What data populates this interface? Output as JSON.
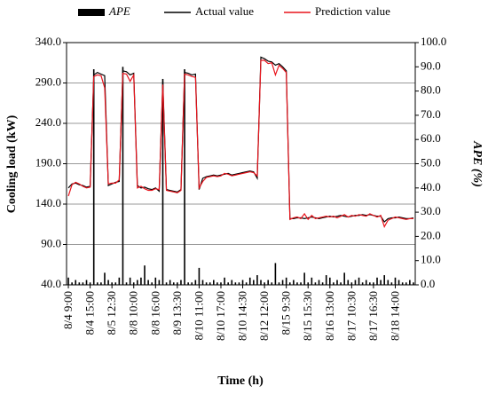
{
  "chart_data": {
    "type": "bar_line",
    "xlabel": "Time (h)",
    "ylabel": "Cooling load (kW)",
    "y2label": "APE (%)",
    "legend": "top",
    "grid": true,
    "categories": [
      "8/4 9:00",
      null,
      null,
      null,
      null,
      null,
      "8/4 15:00",
      null,
      null,
      null,
      null,
      null,
      "8/5 12:30",
      null,
      null,
      null,
      null,
      null,
      "8/8 10:00",
      null,
      null,
      null,
      null,
      null,
      "8/8 16:00",
      null,
      null,
      null,
      null,
      null,
      "8/9 13:30",
      null,
      null,
      null,
      null,
      null,
      "8/10 11:00",
      null,
      null,
      null,
      null,
      null,
      "8/10 17:00",
      null,
      null,
      null,
      null,
      null,
      "8/10 14:30",
      null,
      null,
      null,
      null,
      null,
      "8/12 12:00",
      null,
      null,
      null,
      null,
      null,
      "8/15 9:30",
      null,
      null,
      null,
      null,
      null,
      "8/15 15:30",
      null,
      null,
      null,
      null,
      null,
      "8/16 13:00",
      null,
      null,
      null,
      null,
      null,
      "8/17 10:30",
      null,
      null,
      null,
      null,
      null,
      "8/17 16:30",
      null,
      null,
      null,
      null,
      null,
      "8/18 14:00",
      null,
      null,
      null,
      null,
      null
    ],
    "series": [
      {
        "name": "APE",
        "color": "#000000",
        "axis": "y2",
        "kind": "bar",
        "values": [
          3,
          1,
          2,
          1,
          1,
          2,
          1,
          89,
          1,
          1,
          5,
          2,
          1,
          1,
          3,
          90,
          1,
          3,
          1,
          2,
          3,
          8,
          2,
          1,
          3,
          2,
          85,
          1,
          2,
          1,
          1,
          2,
          89,
          1,
          1,
          2,
          7,
          2,
          1,
          1,
          2,
          1,
          1,
          3,
          1,
          2,
          1,
          1,
          2,
          1,
          3,
          2,
          4,
          2,
          1,
          2,
          1,
          9,
          1,
          2,
          3,
          1,
          2,
          1,
          1,
          5,
          1,
          3,
          1,
          2,
          1,
          4,
          3,
          1,
          2,
          1,
          5,
          2,
          1,
          2,
          3,
          1,
          2,
          1,
          1,
          3,
          2,
          4,
          2,
          1,
          3,
          2,
          1,
          1,
          2,
          1
        ]
      },
      {
        "name": "Actual value",
        "color": "#000000",
        "kind": "line",
        "values": [
          160,
          165,
          166,
          164,
          163,
          161,
          162,
          300,
          303,
          301,
          299,
          163,
          165,
          167,
          168,
          305,
          304,
          300,
          302,
          163,
          160,
          161,
          159,
          158,
          160,
          156,
          292,
          158,
          157,
          156,
          155,
          158,
          303,
          302,
          300,
          301,
          158,
          172,
          174,
          175,
          176,
          175,
          176,
          177,
          178,
          176,
          177,
          178,
          179,
          180,
          181,
          180,
          172,
          322,
          320,
          317,
          316,
          312,
          314,
          310,
          305,
          122,
          122,
          123,
          123,
          122,
          123,
          124,
          123,
          122,
          123,
          124,
          125,
          124,
          125,
          126,
          125,
          124,
          125,
          126,
          126,
          127,
          126,
          127,
          126,
          125,
          125,
          118,
          122,
          123,
          123,
          124,
          123,
          122,
          122,
          123
        ]
      },
      {
        "name": "Prediction value",
        "color": "#e8141c",
        "kind": "line",
        "values": [
          150,
          164,
          167,
          165,
          162,
          160,
          161,
          298,
          300,
          299,
          284,
          165,
          166,
          166,
          170,
          302,
          301,
          292,
          300,
          160,
          162,
          159,
          157,
          157,
          159,
          158,
          288,
          157,
          156,
          155,
          154,
          157,
          301,
          300,
          298,
          297,
          160,
          168,
          173,
          174,
          175,
          174,
          175,
          178,
          177,
          175,
          176,
          177,
          178,
          179,
          180,
          179,
          175,
          318,
          318,
          314,
          315,
          300,
          312,
          308,
          303,
          121,
          123,
          124,
          122,
          128,
          121,
          126,
          122,
          123,
          124,
          125,
          124,
          125,
          123,
          125,
          127,
          124,
          126,
          125,
          127,
          126,
          125,
          128,
          126,
          124,
          126,
          112,
          120,
          122,
          124,
          123,
          122,
          121,
          122,
          122
        ]
      }
    ],
    "ylim": [
      40,
      340
    ],
    "yticks": [
      {
        "value": 40,
        "label": "40.0"
      },
      {
        "value": 90,
        "label": "90.0"
      },
      {
        "value": 140,
        "label": "140.0"
      },
      {
        "value": 190,
        "label": "190.0"
      },
      {
        "value": 240,
        "label": "240.0"
      },
      {
        "value": 290,
        "label": "290.0"
      },
      {
        "value": 340,
        "label": "340.0"
      }
    ],
    "y2lim": [
      0,
      100
    ],
    "y2ticks": [
      {
        "value": 0,
        "label": "0.0"
      },
      {
        "value": 10,
        "label": "10.0"
      },
      {
        "value": 20,
        "label": "20.0"
      },
      {
        "value": 30,
        "label": "30.0"
      },
      {
        "value": 40,
        "label": "40.0"
      },
      {
        "value": 50,
        "label": "50.0"
      },
      {
        "value": 60,
        "label": "60.0"
      },
      {
        "value": 70,
        "label": "70.0"
      },
      {
        "value": 80,
        "label": "80.0"
      },
      {
        "value": 90,
        "label": "90.0"
      },
      {
        "value": 100,
        "label": "100.0"
      }
    ]
  }
}
